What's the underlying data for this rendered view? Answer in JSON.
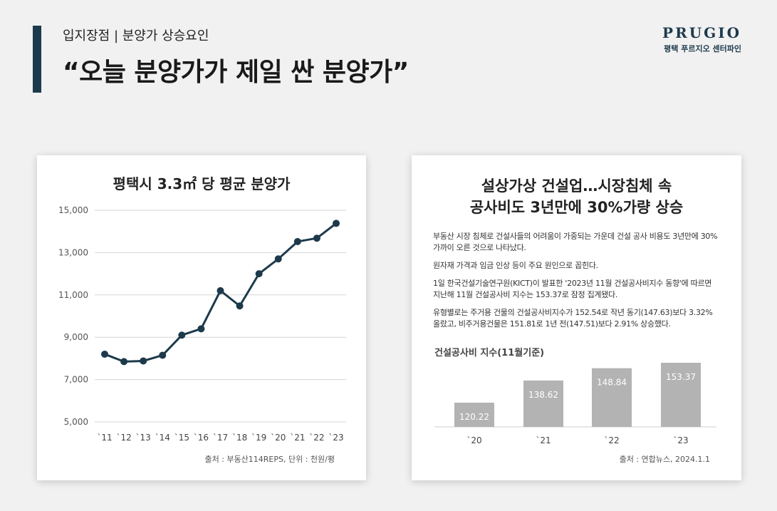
{
  "header": {
    "kicker": "입지장점 | 분양가 상승요인",
    "headline": "“오늘 분양가가 제일 싼 분양가”",
    "logo_word": "PRUGIO",
    "logo_sub": "평택 푸르지오 센터파인"
  },
  "left_card": {
    "source": "출처 : 부동산114REPS, 단위 : 천원/평"
  },
  "right_card": {
    "title_line1": "설상가상 건설업…시장침체 속",
    "title_line2": "공사비도 3년만에 30%가량 상승",
    "paragraphs": [
      "부동산 시장 침체로 건설사들의 어려움이 가중되는 가운데 건설 공사 비용도 3년만에 30% 가까이 오른 것으로 나타났다.",
      "원자재 가격과 임금 인상 등이 주요 원인으로 꼽힌다.",
      "1일 한국건설기술연구원(KICT)이 발표한 '2023년 11월 건설공사비지수 동향'에 따르면 지난해 11월 건설공사비 지수는 153.37로 잠정 집계됐다.",
      "유형별로는 주거용 건물의 건설공사비지수가 152.54로 작년 동기(147.63)보다 3.32% 올랐고, 비주거용건물은 151.81로 1년 전(147.51)보다 2.91% 상승했다."
    ],
    "source": "출처 : 연합뉴스, 2024.1.1"
  },
  "chart_data": [
    {
      "type": "line",
      "title": "평택시 3.3㎡ 당 평균 분양가",
      "categories": [
        "`11",
        "`12",
        "`13",
        "`14",
        "`15",
        "`16",
        "`17",
        "`18",
        "`19",
        "`20",
        "`21",
        "`22",
        "`23"
      ],
      "values": [
        8200,
        7850,
        7880,
        8150,
        9100,
        9400,
        11200,
        10480,
        12000,
        12700,
        13520,
        13680,
        14380
      ],
      "yticks": [
        "15,000",
        "13,000",
        "11,000",
        "9,000",
        "7,000",
        "5,000"
      ],
      "ylim": [
        5000,
        15000
      ],
      "grid": true,
      "color": "#1d3a4c"
    },
    {
      "type": "bar",
      "title": "건설공사비 지수(11월기준)",
      "categories": [
        "`20",
        "`21",
        "`22",
        "`23"
      ],
      "values": [
        120.22,
        138.62,
        148.84,
        153.37
      ],
      "labels": [
        "120.22",
        "138.62",
        "148.84",
        "153.37"
      ],
      "color": "#b3b3b3"
    }
  ]
}
